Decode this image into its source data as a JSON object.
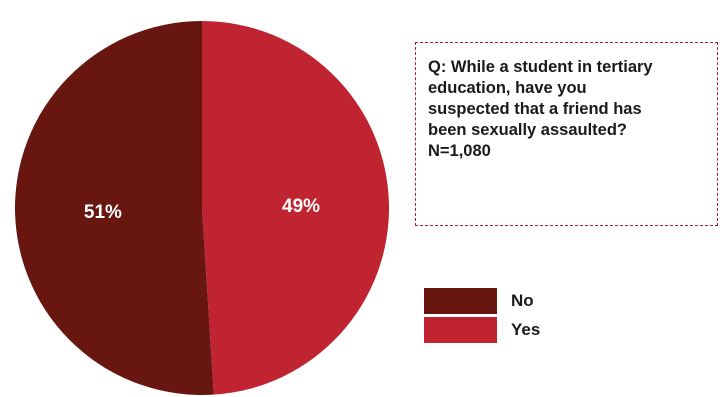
{
  "chart_data": {
    "type": "pie",
    "slices": [
      {
        "name": "Yes",
        "value": 49,
        "label": "49%",
        "color": "#bf2430"
      },
      {
        "name": "No",
        "value": 51,
        "label": "51%",
        "color": "#681610"
      }
    ]
  },
  "question": {
    "text": "Q: While a student in tertiary education, have you suspected that a friend has been sexually assaulted?",
    "n": "N=1,080"
  },
  "legend": [
    {
      "label": "No",
      "color": "#681610"
    },
    {
      "label": "Yes",
      "color": "#bf2430"
    }
  ]
}
